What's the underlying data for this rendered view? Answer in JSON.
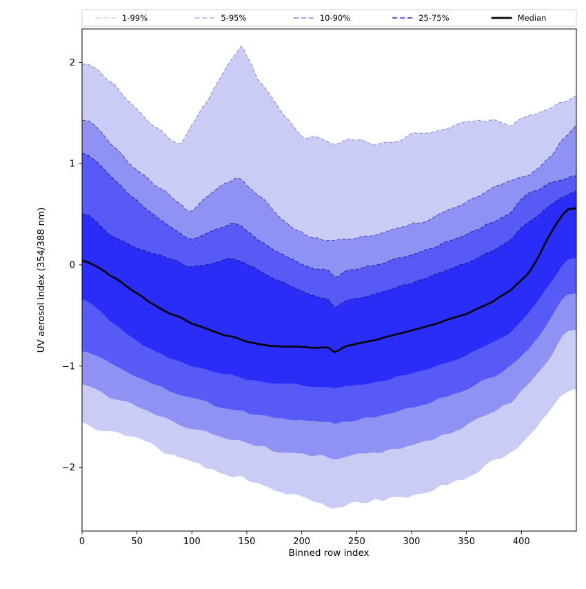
{
  "figure": {
    "background": "#ffffff"
  },
  "legend": {
    "position": "top",
    "border_color": "#cccccc",
    "background": "#ffffff",
    "entries": [
      {
        "label": "1-99%",
        "line_color": "#d2d3f1",
        "line_style": "dashed",
        "line_width": 1.4
      },
      {
        "label": "5-95%",
        "line_color": "#a9aaee",
        "line_style": "dashed",
        "line_width": 1.4
      },
      {
        "label": "10-90%",
        "line_color": "#7d7ff0",
        "line_style": "dashed",
        "line_width": 1.4
      },
      {
        "label": "25-75%",
        "line_color": "#4547e8",
        "line_style": "dashed",
        "line_width": 1.8
      },
      {
        "label": "Median",
        "line_color": "#000000",
        "line_style": "solid",
        "line_width": 2.8
      }
    ]
  },
  "axes": {
    "xlabel": "Binned row index",
    "ylabel": "UV aerosol index (354/388 nm)",
    "xlim": [
      0,
      450
    ],
    "ylim": [
      -2.63,
      2.33
    ],
    "xticks": [
      0,
      50,
      100,
      150,
      200,
      250,
      300,
      350,
      400
    ],
    "yticks": [
      {
        "v": -2,
        "label": "−2"
      },
      {
        "v": -1,
        "label": "−1"
      },
      {
        "v": 0,
        "label": "0"
      },
      {
        "v": 1,
        "label": "1"
      },
      {
        "v": 2,
        "label": "2"
      }
    ],
    "grid": false
  },
  "chart_data": {
    "type": "area",
    "title": "",
    "description": "Percentile fan chart (1-99, 5-95, 10-90, 25-75 bands and median) of UV aerosol index versus binned row index",
    "x": [
      0,
      10,
      25,
      50,
      75,
      90,
      100,
      115,
      125,
      135,
      140,
      145,
      150,
      160,
      175,
      200,
      215,
      225,
      230,
      240,
      250,
      275,
      300,
      325,
      350,
      375,
      390,
      400,
      410,
      425,
      440,
      450
    ],
    "series": {
      "p1": [
        -1.56,
        -1.62,
        -1.65,
        -1.7,
        -1.85,
        -1.9,
        -1.95,
        -2.0,
        -2.05,
        -2.08,
        -2.09,
        -2.1,
        -2.12,
        -2.16,
        -2.22,
        -2.3,
        -2.34,
        -2.38,
        -2.4,
        -2.38,
        -2.36,
        -2.32,
        -2.28,
        -2.2,
        -2.1,
        -1.95,
        -1.85,
        -1.75,
        -1.65,
        -1.45,
        -1.25,
        -1.22
      ],
      "p5": [
        -1.18,
        -1.22,
        -1.3,
        -1.4,
        -1.52,
        -1.58,
        -1.62,
        -1.66,
        -1.7,
        -1.72,
        -1.73,
        -1.74,
        -1.77,
        -1.79,
        -1.83,
        -1.87,
        -1.88,
        -1.9,
        -1.9,
        -1.89,
        -1.88,
        -1.84,
        -1.78,
        -1.7,
        -1.6,
        -1.45,
        -1.35,
        -1.25,
        -1.12,
        -0.92,
        -0.68,
        -0.65
      ],
      "p10": [
        -0.84,
        -0.88,
        -0.97,
        -1.1,
        -1.22,
        -1.28,
        -1.32,
        -1.36,
        -1.4,
        -1.42,
        -1.43,
        -1.44,
        -1.46,
        -1.48,
        -1.51,
        -1.53,
        -1.54,
        -1.55,
        -1.56,
        -1.54,
        -1.53,
        -1.48,
        -1.42,
        -1.33,
        -1.23,
        -1.1,
        -1.0,
        -0.9,
        -0.78,
        -0.55,
        -0.32,
        -0.28
      ],
      "p25": [
        -0.35,
        -0.4,
        -0.55,
        -0.75,
        -0.9,
        -0.96,
        -1.0,
        -1.04,
        -1.07,
        -1.09,
        -1.1,
        -1.11,
        -1.13,
        -1.15,
        -1.17,
        -1.19,
        -1.2,
        -1.21,
        -1.22,
        -1.2,
        -1.19,
        -1.14,
        -1.07,
        -0.99,
        -0.89,
        -0.76,
        -0.67,
        -0.55,
        -0.42,
        -0.2,
        0.02,
        0.06
      ],
      "median": [
        0.04,
        0.0,
        -0.1,
        -0.28,
        -0.45,
        -0.52,
        -0.58,
        -0.64,
        -0.68,
        -0.71,
        -0.72,
        -0.74,
        -0.76,
        -0.78,
        -0.8,
        -0.81,
        -0.82,
        -0.82,
        -0.86,
        -0.81,
        -0.78,
        -0.72,
        -0.65,
        -0.57,
        -0.48,
        -0.36,
        -0.25,
        -0.15,
        -0.02,
        0.28,
        0.52,
        0.56
      ],
      "p75": [
        0.5,
        0.46,
        0.3,
        0.17,
        0.08,
        0.02,
        -0.02,
        0.01,
        0.03,
        0.06,
        0.05,
        0.03,
        0.0,
        -0.05,
        -0.14,
        -0.26,
        -0.32,
        -0.35,
        -0.42,
        -0.35,
        -0.33,
        -0.26,
        -0.18,
        -0.08,
        0.02,
        0.15,
        0.24,
        0.36,
        0.45,
        0.58,
        0.68,
        0.72
      ],
      "p90": [
        1.09,
        1.05,
        0.88,
        0.63,
        0.42,
        0.32,
        0.26,
        0.32,
        0.37,
        0.4,
        0.4,
        0.38,
        0.33,
        0.25,
        0.14,
        0.0,
        -0.04,
        -0.07,
        -0.12,
        -0.06,
        -0.04,
        0.02,
        0.1,
        0.19,
        0.3,
        0.43,
        0.52,
        0.64,
        0.72,
        0.8,
        0.85,
        0.87
      ],
      "p95": [
        1.42,
        1.38,
        1.22,
        0.95,
        0.72,
        0.6,
        0.55,
        0.68,
        0.78,
        0.84,
        0.86,
        0.85,
        0.8,
        0.68,
        0.52,
        0.32,
        0.27,
        0.25,
        0.24,
        0.26,
        0.28,
        0.32,
        0.4,
        0.5,
        0.62,
        0.75,
        0.83,
        0.88,
        0.92,
        1.05,
        1.25,
        1.37
      ],
      "p99": [
        1.97,
        1.95,
        1.8,
        1.55,
        1.3,
        1.22,
        1.4,
        1.65,
        1.83,
        2.0,
        2.08,
        2.17,
        2.05,
        1.85,
        1.6,
        1.28,
        1.26,
        1.22,
        1.2,
        1.24,
        1.22,
        1.2,
        1.28,
        1.33,
        1.41,
        1.44,
        1.38,
        1.47,
        1.5,
        1.55,
        1.62,
        1.66
      ]
    },
    "bands": [
      {
        "legend": "1-99%",
        "lower": "p1",
        "upper": "p99",
        "fill": "#caccf6",
        "edge": "#8b8dd8"
      },
      {
        "legend": "5-95%",
        "lower": "p5",
        "upper": "p95",
        "fill": "#8f91f3",
        "edge": "#4b4dbb"
      },
      {
        "legend": "10-90%",
        "lower": "p10",
        "upper": "p90",
        "fill": "#585af7",
        "edge": "#23259b"
      },
      {
        "legend": "25-75%",
        "lower": "p25",
        "upper": "p75",
        "fill": "#2a2df7",
        "edge": "#181a86"
      }
    ],
    "median_line": {
      "color": "#000000",
      "width": 2.6
    },
    "jitter": {
      "p1": 0.035,
      "p5": 0.025,
      "p10": 0.018,
      "p25": 0.012,
      "median": 0.006,
      "p75": 0.012,
      "p90": 0.018,
      "p95": 0.025,
      "p99": 0.035
    }
  }
}
